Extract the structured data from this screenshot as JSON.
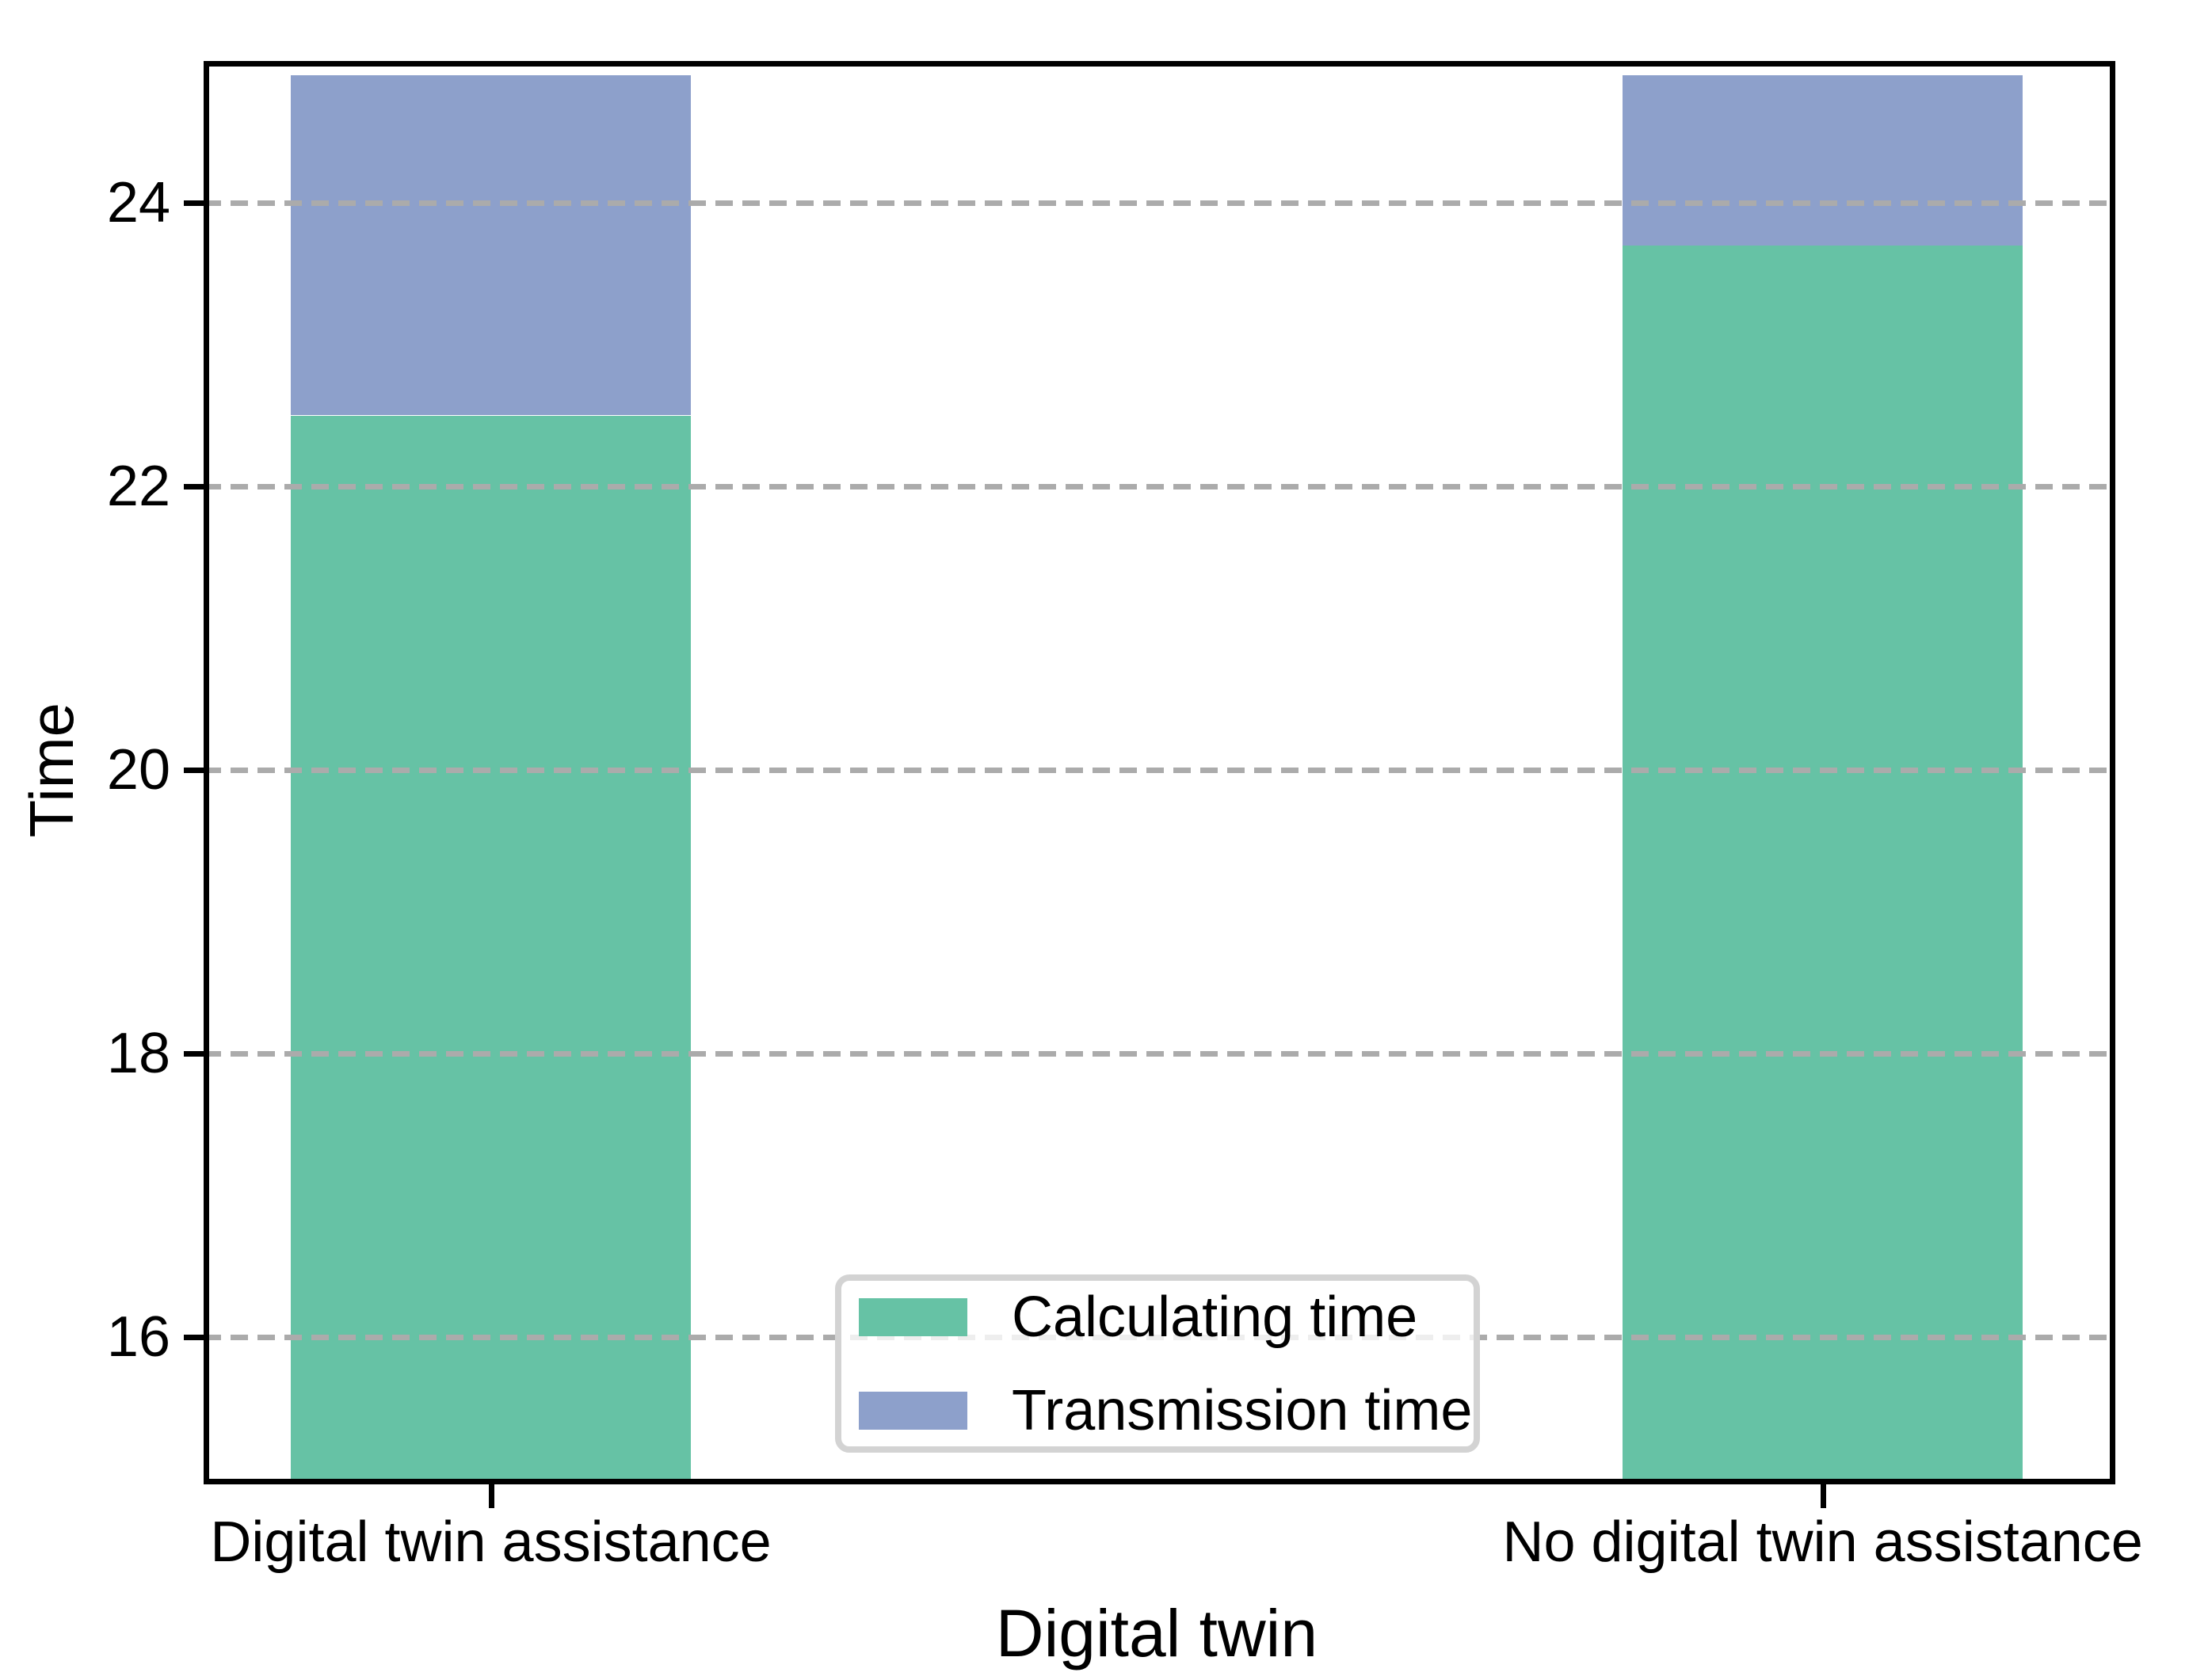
{
  "chart_data": {
    "type": "bar",
    "stacked": true,
    "categories": [
      "Digital twin assistance",
      "No digital twin assistance"
    ],
    "series": [
      {
        "name": "Calculating time",
        "color": "#66c2a5",
        "values": [
          22.5,
          23.7
        ]
      },
      {
        "name": "Transmission time",
        "color": "#8da0cb",
        "values": [
          2.4,
          1.2
        ]
      }
    ],
    "totals": [
      24.9,
      24.9
    ],
    "xlabel": "Digital twin",
    "ylabel": "Time",
    "ylim": [
      15,
      25
    ],
    "yticks": [
      16,
      18,
      20,
      22,
      24
    ],
    "grid": true,
    "gridline_style": "dashed",
    "legend_position": "inside lower-center",
    "legend_entries": [
      "Calculating time",
      "Transmission time"
    ]
  },
  "colors": {
    "calculating": "#66c2a5",
    "transmission": "#8da0cb",
    "gridline": "#ababab",
    "legend_border": "#d3d3d3",
    "legend_background": "rgba(255,255,255,0.8)",
    "spine": "#000000",
    "background": "#ffffff"
  }
}
